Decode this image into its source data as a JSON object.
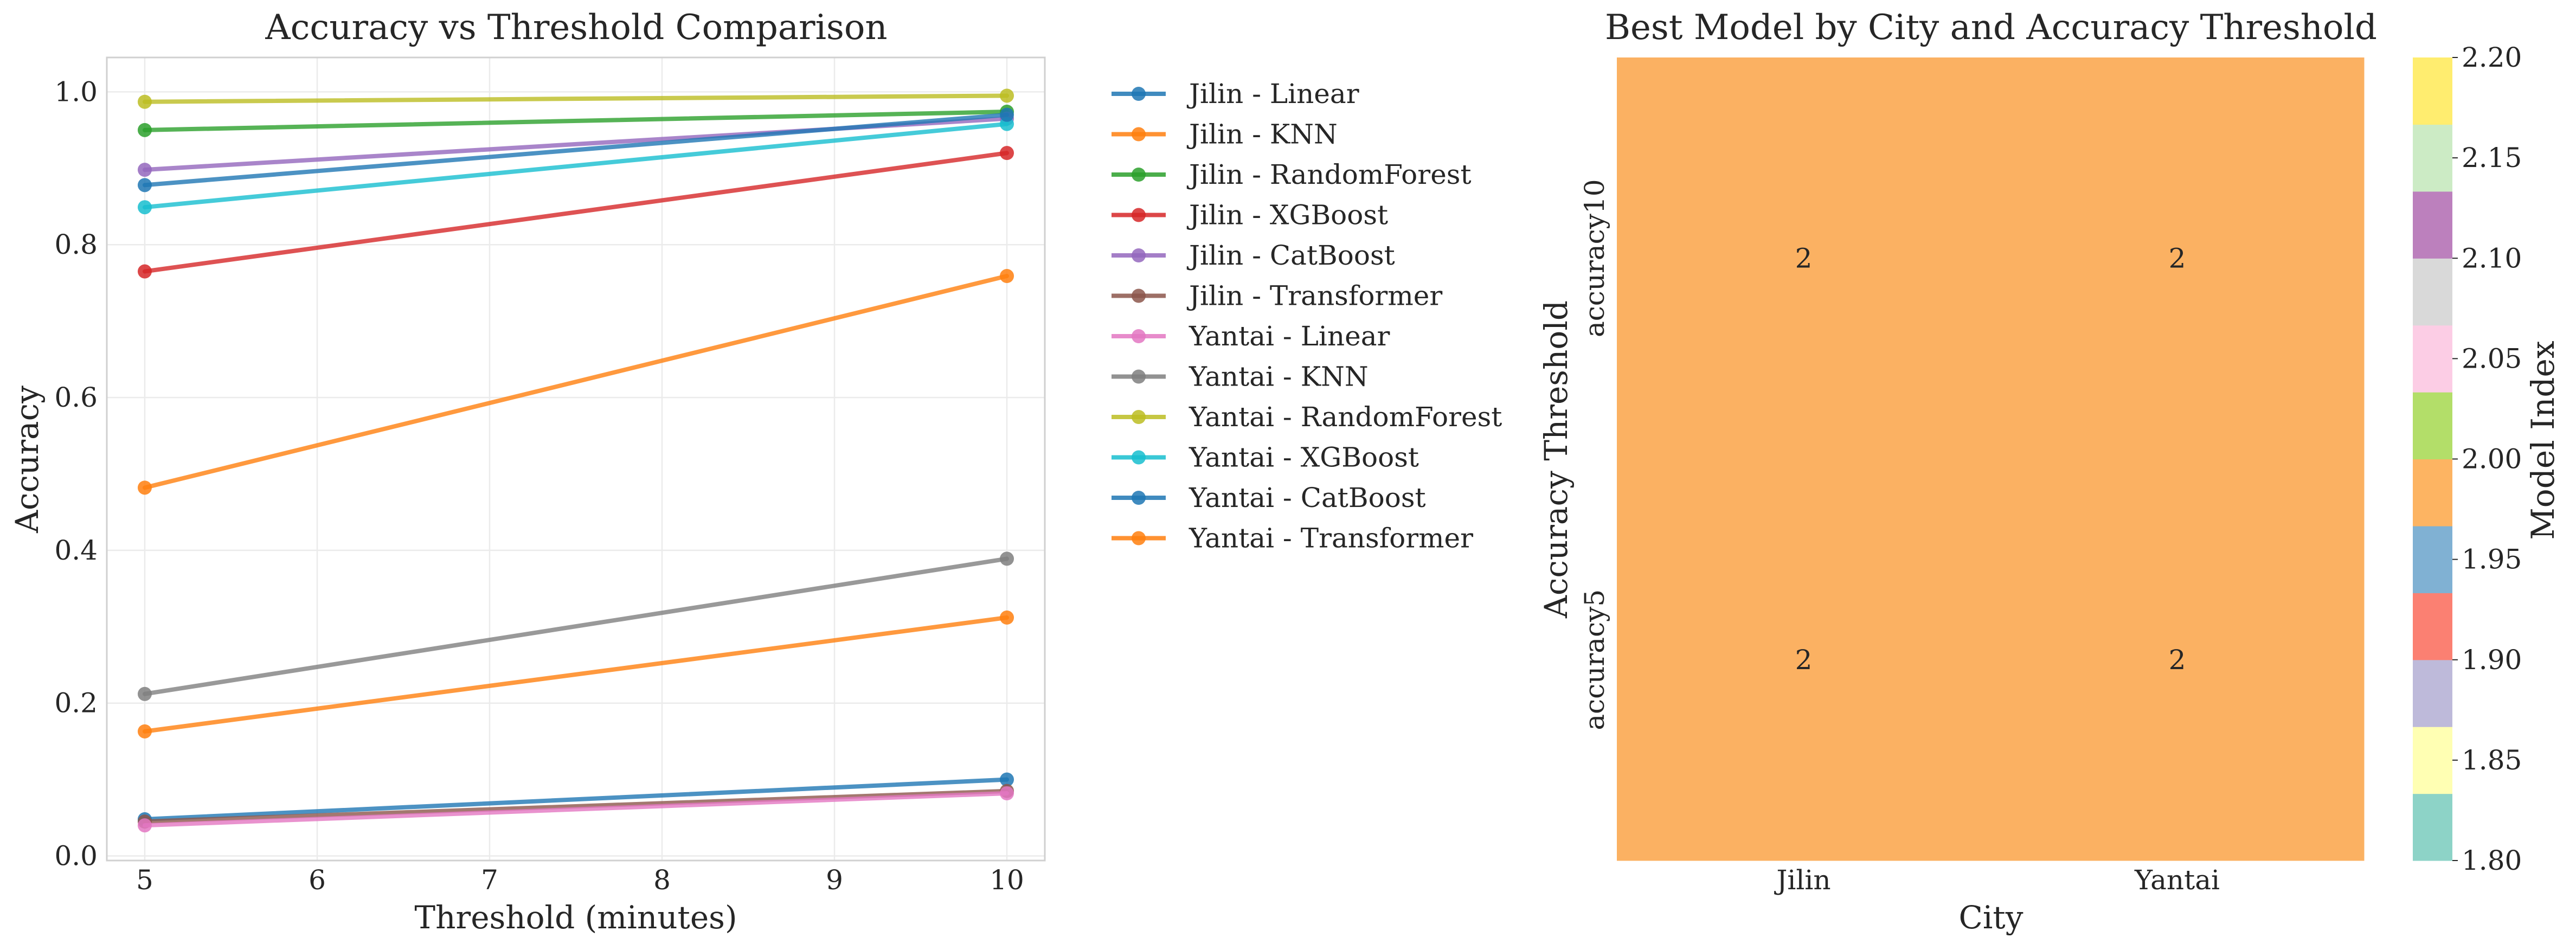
{
  "chart_data": [
    {
      "type": "line",
      "title": "Accuracy vs Threshold Comparison",
      "xlabel": "Threshold (minutes)",
      "ylabel": "Accuracy",
      "x": [
        5,
        10
      ],
      "xlim": [
        4.78,
        10.22
      ],
      "ylim": [
        -0.006,
        1.045
      ],
      "xticks": [
        5,
        6,
        7,
        8,
        9,
        10
      ],
      "yticks": [
        0.0,
        0.2,
        0.4,
        0.6,
        0.8,
        1.0
      ],
      "grid": true,
      "legend_position": "outside-right",
      "series": [
        {
          "name": "Jilin - Linear",
          "color": "#1f77b4",
          "values": [
            0.048,
            0.1
          ]
        },
        {
          "name": "Jilin - KNN",
          "color": "#ff7f0e",
          "values": [
            0.163,
            0.312
          ]
        },
        {
          "name": "Jilin - RandomForest",
          "color": "#2ca02c",
          "values": [
            0.95,
            0.974
          ]
        },
        {
          "name": "Jilin - XGBoost",
          "color": "#d62728",
          "values": [
            0.765,
            0.92
          ]
        },
        {
          "name": "Jilin - CatBoost",
          "color": "#9467bd",
          "values": [
            0.898,
            0.965
          ]
        },
        {
          "name": "Jilin - Transformer",
          "color": "#8c564b",
          "values": [
            0.045,
            0.085
          ]
        },
        {
          "name": "Yantai - Linear",
          "color": "#e377c2",
          "values": [
            0.04,
            0.082
          ]
        },
        {
          "name": "Yantai - KNN",
          "color": "#7f7f7f",
          "values": [
            0.212,
            0.389
          ]
        },
        {
          "name": "Yantai - RandomForest",
          "color": "#bcbd22",
          "values": [
            0.987,
            0.995
          ]
        },
        {
          "name": "Yantai - XGBoost",
          "color": "#17becf",
          "values": [
            0.849,
            0.958
          ]
        },
        {
          "name": "Yantai - CatBoost",
          "color": "#1f77b4",
          "values": [
            0.878,
            0.97
          ]
        },
        {
          "name": "Yantai - Transformer",
          "color": "#ff7f0e",
          "values": [
            0.482,
            0.759
          ]
        }
      ]
    },
    {
      "type": "heatmap",
      "title": "Best Model by City and Accuracy Threshold",
      "xlabel": "City",
      "ylabel": "Accuracy Threshold",
      "x_categories": [
        "Jilin",
        "Yantai"
      ],
      "y_categories": [
        "accuracy10",
        "accuracy5"
      ],
      "values": [
        [
          2,
          2
        ],
        [
          2,
          2
        ]
      ],
      "cell_labels": [
        [
          "2",
          "2"
        ],
        [
          "2",
          "2"
        ]
      ],
      "cell_color": "#fbb162",
      "colorbar": {
        "label": "Model Index",
        "range": [
          1.8,
          2.2
        ],
        "ticks": [
          "1.80",
          "1.85",
          "1.90",
          "1.95",
          "2.00",
          "2.05",
          "2.10",
          "2.15",
          "2.20"
        ],
        "colors": [
          "#8dd3c7",
          "#ffffb3",
          "#bebada",
          "#fb8072",
          "#80b1d3",
          "#fdb462",
          "#b3de69",
          "#fccde5",
          "#d9d9d9",
          "#bc80bd",
          "#ccebc5",
          "#ffed6f"
        ]
      }
    }
  ]
}
